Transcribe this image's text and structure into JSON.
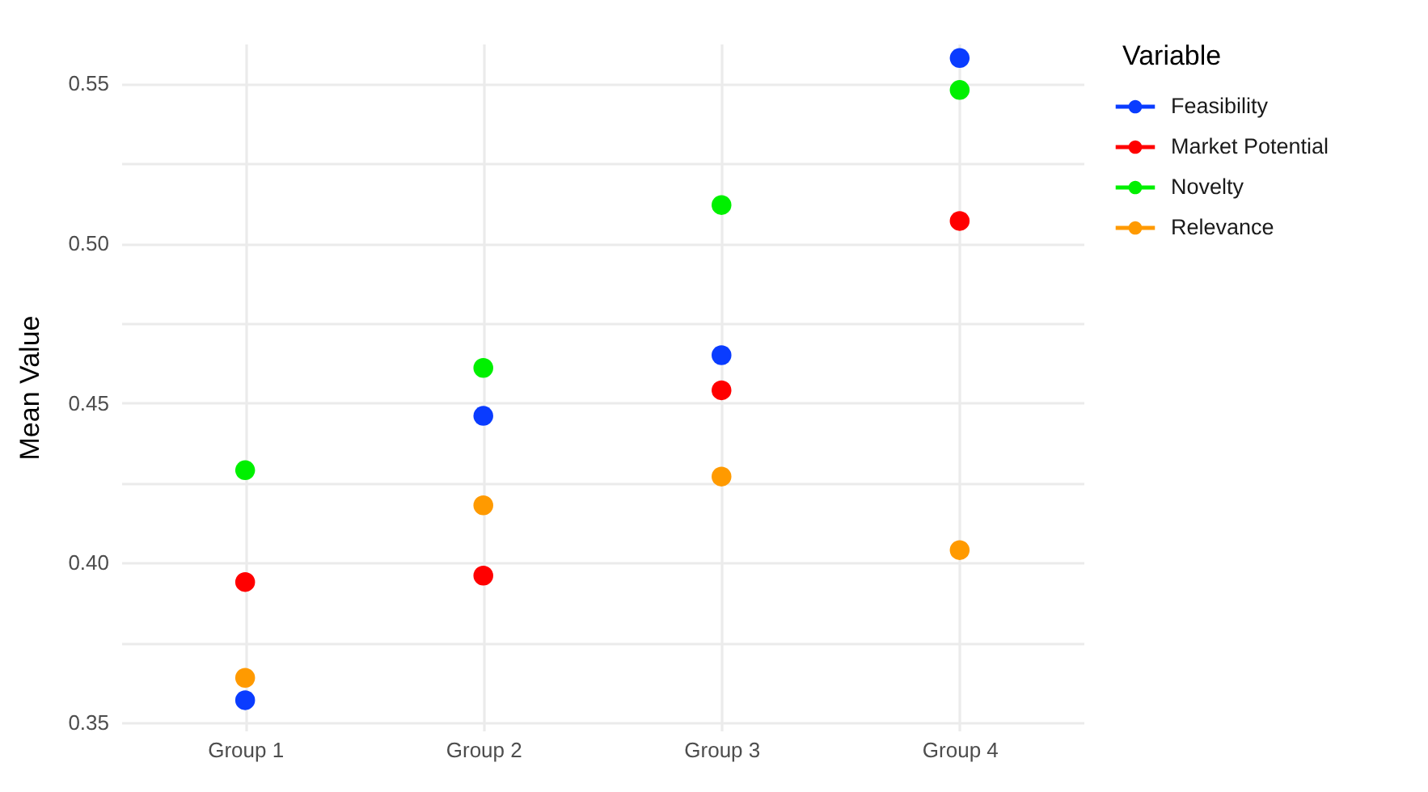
{
  "chart_data": {
    "type": "scatter",
    "ylabel": "Mean Value",
    "legend_title": "Variable",
    "categories": [
      "Group 1",
      "Group 2",
      "Group 3",
      "Group 4"
    ],
    "series": [
      {
        "name": "Feasibility",
        "color": "#0a3cff",
        "values": [
          0.357,
          0.446,
          0.465,
          0.558
        ]
      },
      {
        "name": "Market Potential",
        "color": "#ff0000",
        "values": [
          0.394,
          0.396,
          0.454,
          0.507
        ]
      },
      {
        "name": "Novelty",
        "color": "#00f000",
        "values": [
          0.429,
          0.461,
          0.512,
          0.548
        ]
      },
      {
        "name": "Relevance",
        "color": "#ff9a00",
        "values": [
          0.364,
          0.418,
          0.427,
          0.404
        ]
      }
    ],
    "ylim": [
      0.3475,
      0.5625
    ],
    "yticks": [
      0.35,
      {
        "value": 0.375,
        "label": null
      },
      {
        "value": 0.4,
        "label": "0.40"
      },
      {
        "value": 0.425,
        "label": null
      },
      0.45,
      {
        "value": 0.475,
        "label": null
      },
      {
        "value": 0.5,
        "label": "0.50"
      },
      {
        "value": 0.525,
        "label": null
      },
      0.55
    ],
    "grid": true,
    "legend": "right",
    "marker": "circle"
  }
}
